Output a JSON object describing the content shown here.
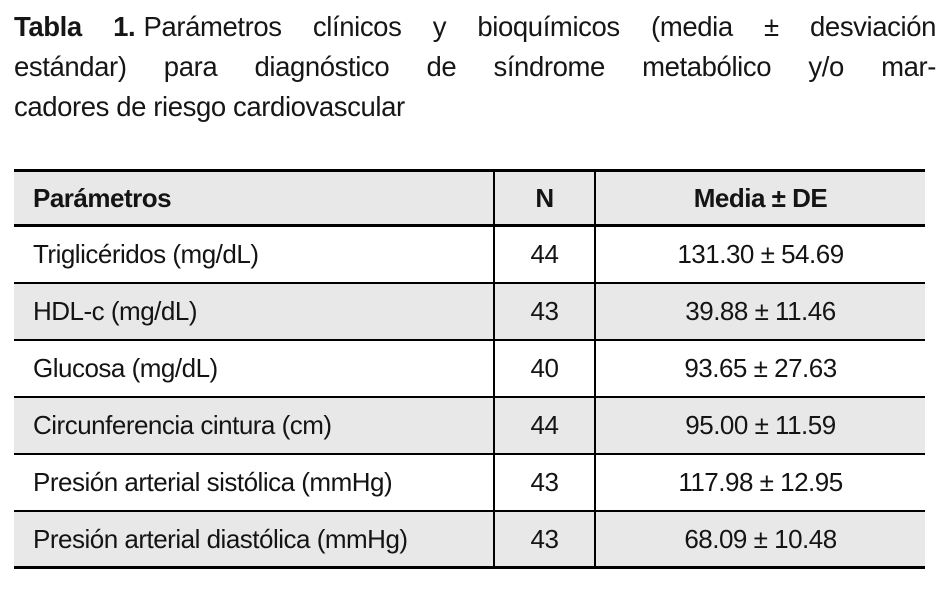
{
  "caption": {
    "label": "Tabla 1.",
    "line1_rest": "Parámetros clínicos y bioquímicos (media ± desviación",
    "line2": "estándar) para diagnóstico de síndrome metabólico y/o mar-",
    "line3": "cadores de riesgo cardiovascular"
  },
  "table": {
    "headers": {
      "param": "Parámetros",
      "n": "N",
      "media": "Media ± DE"
    },
    "rows": [
      {
        "param": "Triglicéridos (mg/dL)",
        "n": "44",
        "media": "131.30 ± 54.69"
      },
      {
        "param": "HDL-c (mg/dL)",
        "n": "43",
        "media": "39.88 ± 11.46"
      },
      {
        "param": "Glucosa (mg/dL)",
        "n": "40",
        "media": "93.65 ± 27.63"
      },
      {
        "param": "Circunferencia cintura (cm)",
        "n": "44",
        "media": "95.00 ± 11.59"
      },
      {
        "param": "Presión arterial sistólica (mmHg)",
        "n": "43",
        "media": "117.98 ± 12.95"
      },
      {
        "param": "Presión arterial diastólica (mmHg)",
        "n": "43",
        "media": "68.09 ± 10.48"
      }
    ],
    "colors": {
      "header_bg": "#e8e8e8",
      "alt_row_bg": "#e8e8e8",
      "row_bg": "#ffffff",
      "border": "#000000",
      "text": "#141414"
    }
  }
}
